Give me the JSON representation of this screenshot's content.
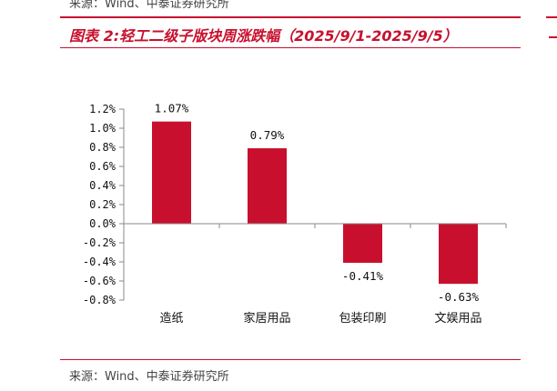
{
  "header": {
    "top_source": "来源：Wind、中泰证券研究所",
    "figure_title": "图表 2:轻工二级子版块周涨跌幅（2025/9/1-2025/9/5）"
  },
  "footer": {
    "source": "来源：Wind、中泰证券研究所"
  },
  "chart_data": {
    "type": "bar",
    "categories": [
      "造纸",
      "家居用品",
      "包装印刷",
      "文娱用品"
    ],
    "values": [
      1.07,
      0.79,
      -0.41,
      -0.63
    ],
    "value_labels": [
      "1.07%",
      "0.79%",
      "-0.41%",
      "-0.63%"
    ],
    "ylim": [
      -0.8,
      1.2
    ],
    "yticks": [
      1.2,
      1.0,
      0.8,
      0.6,
      0.4,
      0.2,
      0.0,
      -0.2,
      -0.4,
      -0.6,
      -0.8
    ],
    "ytick_labels": [
      "1.2%",
      "1.0%",
      "0.8%",
      "0.6%",
      "0.4%",
      "0.2%",
      "0.0%",
      "-0.2%",
      "-0.4%",
      "-0.6%",
      "-0.8%"
    ],
    "bar_color": "#c8102e",
    "grid": false,
    "legend": false,
    "title": "",
    "xlabel": "",
    "ylabel": ""
  }
}
